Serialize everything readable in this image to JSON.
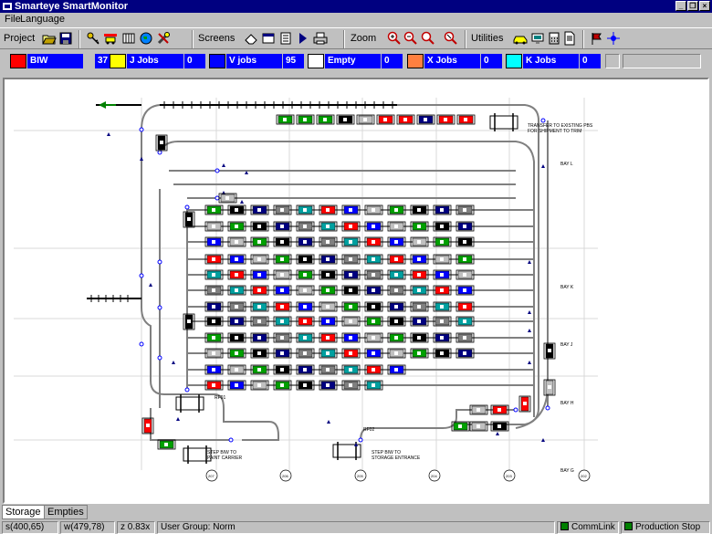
{
  "window": {
    "title": "Smarteye SmartMonitor"
  },
  "menu": {
    "file": "File",
    "language": "Language"
  },
  "toolbar": {
    "project_label": "Project",
    "screens_label": "Screens",
    "zoom_label": "Zoom",
    "utilities_label": "Utilities"
  },
  "jobs": [
    {
      "label": "BIW",
      "count": "37",
      "color": "#ff0000"
    },
    {
      "label": "J Jobs",
      "count": "0",
      "color": "#ffff00"
    },
    {
      "label": "V jobs",
      "count": "95",
      "color": "#0000ff"
    },
    {
      "label": "Empty",
      "count": "0",
      "color": "#ffffff"
    },
    {
      "label": "X Jobs",
      "count": "0",
      "color": "#ff8040"
    },
    {
      "label": "K Jobs",
      "count": "0",
      "color": "#00ffff"
    }
  ],
  "map": {
    "transfer_note_1": "TRANSFER TO EXISTING PBS",
    "transfer_note_2": "FOR SHIPMENT TO TRIM",
    "bays": [
      "BAY L",
      "BAY K",
      "BAY J",
      "BAY H",
      "BAY G"
    ],
    "columns": [
      "207",
      "206",
      "205",
      "204",
      "203",
      "202"
    ],
    "rf01": "RF01",
    "rf02": "RF02",
    "note_left_1": "STEP BIW TO",
    "note_left_2": "PAINT CARRIER",
    "note_right_1": "STEP BIW TO",
    "note_right_2": "STORAGE ENTRANCE"
  },
  "tabs": {
    "storage": "Storage",
    "empties": "Empties"
  },
  "status": {
    "s": "s(400,65)",
    "w": "w(479,78)",
    "z": "z 0.83x",
    "group": "User Group: Norm",
    "commlink": "CommLink",
    "production": "Production Stop"
  }
}
